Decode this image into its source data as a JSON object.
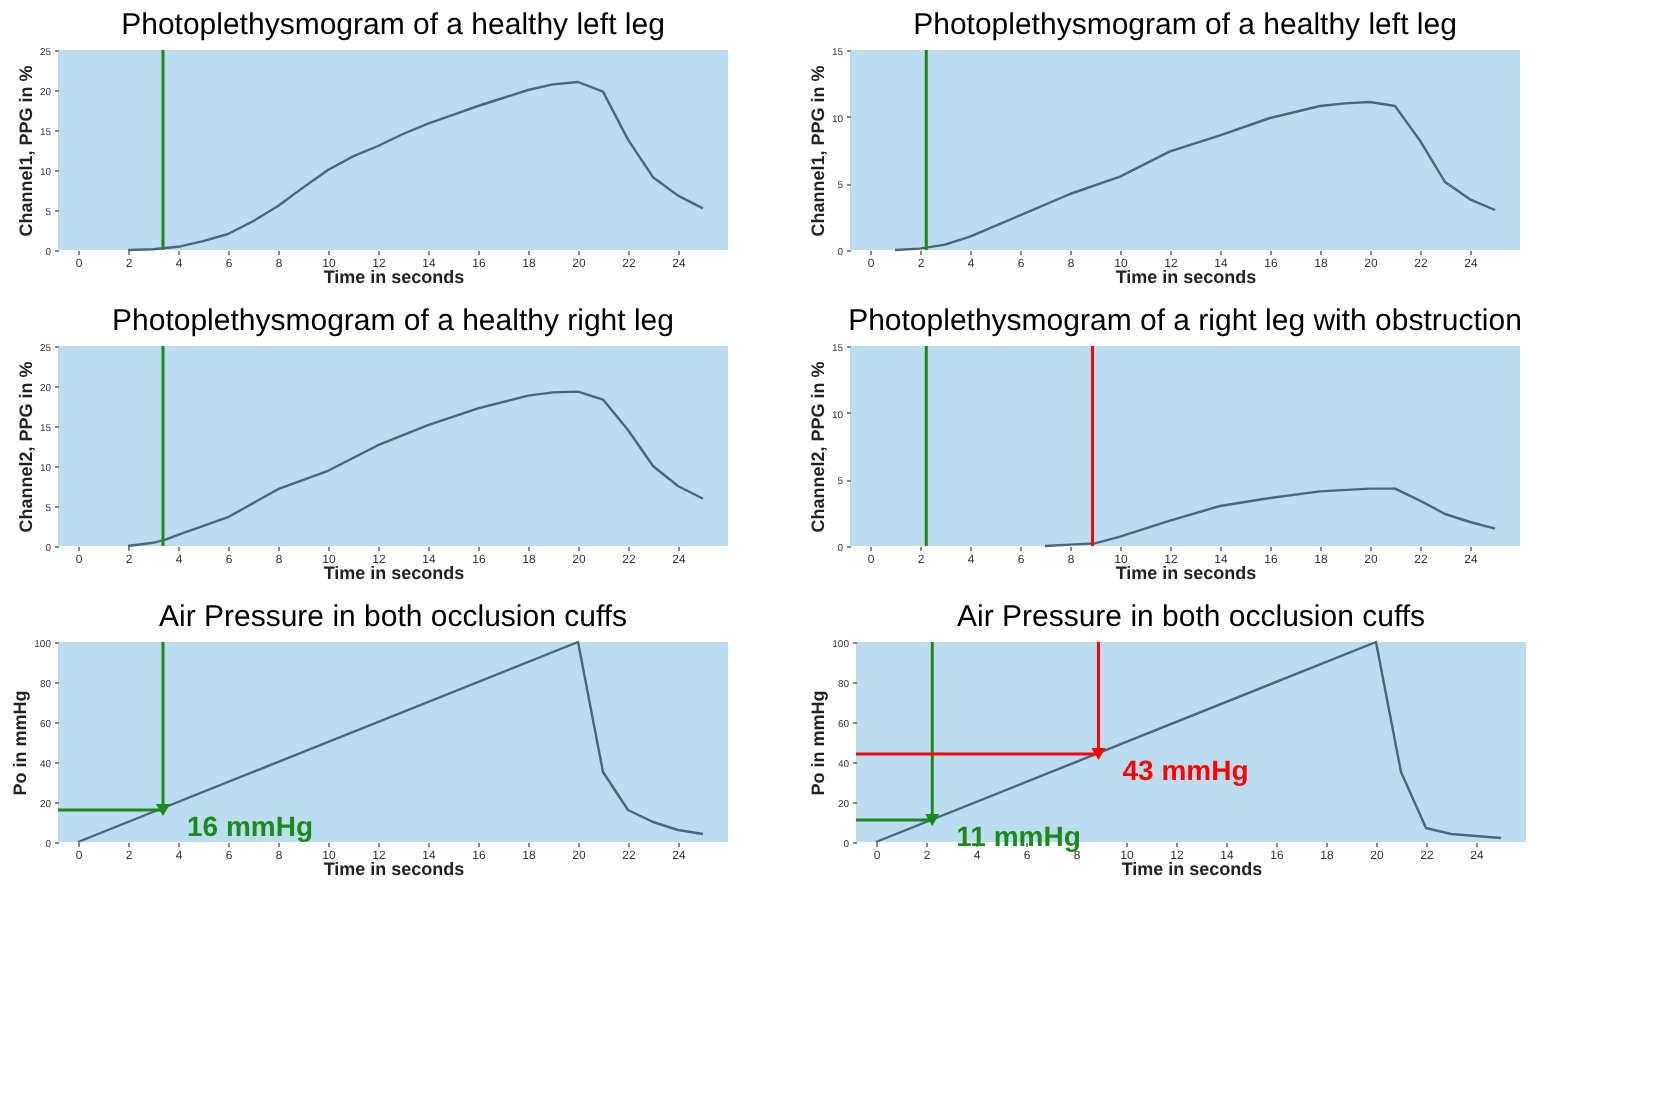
{
  "chart_data": [
    {
      "type": "line",
      "title": "Photoplethysmogram of a healthy left leg",
      "xlabel": "Time in seconds",
      "ylabel": "Channel1, PPG in %",
      "xlim": [
        -0.8,
        26
      ],
      "ylim": [
        0,
        25
      ],
      "xticks": [
        0,
        2,
        4,
        6,
        8,
        10,
        12,
        14,
        16,
        18,
        20,
        22,
        24
      ],
      "yticks": [
        0,
        5,
        10,
        15,
        20,
        25
      ],
      "grid": false,
      "series": [
        {
          "color": "#4a6680",
          "x": [
            2,
            3,
            4,
            5,
            6,
            7,
            8,
            9,
            10,
            11,
            12,
            13,
            14,
            15,
            16,
            17,
            18,
            19,
            20,
            21,
            22,
            23,
            24,
            25
          ],
          "values": [
            0,
            0.1,
            0.4,
            1.1,
            2.0,
            3.6,
            5.5,
            7.8,
            10.0,
            11.7,
            13.0,
            14.5,
            15.8,
            16.9,
            18.0,
            19.0,
            20.0,
            20.7,
            21.0,
            19.8,
            13.8,
            9.1,
            6.8,
            5.2
          ]
        }
      ],
      "ref_lines": [
        {
          "axis": "x",
          "value": 3.4,
          "color": "#1a8a1a"
        }
      ]
    },
    {
      "type": "line",
      "title": "Photoplethysmogram of a healthy left leg",
      "xlabel": "Time in seconds",
      "ylabel": "Channel1, PPG in %",
      "xlim": [
        -0.8,
        26
      ],
      "ylim": [
        0,
        15
      ],
      "xticks": [
        0,
        2,
        4,
        6,
        8,
        10,
        12,
        14,
        16,
        18,
        20,
        22,
        24
      ],
      "yticks": [
        0,
        5,
        10,
        15
      ],
      "grid": false,
      "series": [
        {
          "color": "#4a6680",
          "x": [
            1,
            2,
            3,
            4,
            6,
            8,
            10,
            12,
            14,
            16,
            18,
            19,
            20,
            21,
            22,
            23,
            24,
            25
          ],
          "values": [
            0,
            0.1,
            0.4,
            1.0,
            2.6,
            4.2,
            5.5,
            7.4,
            8.6,
            9.9,
            10.8,
            11.0,
            11.1,
            10.8,
            8.2,
            5.1,
            3.8,
            3.0
          ]
        }
      ],
      "ref_lines": [
        {
          "axis": "x",
          "value": 2.25,
          "color": "#1a8a1a"
        }
      ]
    },
    {
      "type": "line",
      "title": "Photoplethysmogram of a healthy right leg",
      "xlabel": "Time in seconds",
      "ylabel": "Channel2, PPG in %",
      "xlim": [
        -0.8,
        26
      ],
      "ylim": [
        0,
        25
      ],
      "xticks": [
        0,
        2,
        4,
        6,
        8,
        10,
        12,
        14,
        16,
        18,
        20,
        22,
        24
      ],
      "yticks": [
        0,
        5,
        10,
        15,
        20,
        25
      ],
      "grid": false,
      "series": [
        {
          "color": "#4a6680",
          "x": [
            2,
            3,
            3.5,
            4,
            6,
            8,
            10,
            12,
            14,
            16,
            18,
            19,
            20,
            21,
            22,
            23,
            24,
            25
          ],
          "values": [
            0,
            0.4,
            0.8,
            1.4,
            3.6,
            7.1,
            9.4,
            12.6,
            15.1,
            17.2,
            18.8,
            19.2,
            19.3,
            18.3,
            14.5,
            10.0,
            7.5,
            5.9
          ]
        }
      ],
      "ref_lines": [
        {
          "axis": "x",
          "value": 3.4,
          "color": "#1a8a1a"
        }
      ]
    },
    {
      "type": "line",
      "title": "Photoplethysmogram of a right leg with obstruction",
      "xlabel": "Time in seconds",
      "ylabel": "Channel2, PPG in %",
      "xlim": [
        -0.8,
        26
      ],
      "ylim": [
        0,
        15
      ],
      "xticks": [
        0,
        2,
        4,
        6,
        8,
        10,
        12,
        14,
        16,
        18,
        20,
        22,
        24
      ],
      "yticks": [
        0,
        5,
        10,
        15
      ],
      "grid": false,
      "series": [
        {
          "color": "#4a6680",
          "x": [
            7,
            8,
            9,
            10,
            12,
            14,
            16,
            18,
            20,
            21,
            22,
            23,
            24,
            25
          ],
          "values": [
            0,
            0.1,
            0.2,
            0.7,
            1.9,
            3.0,
            3.6,
            4.1,
            4.3,
            4.3,
            3.4,
            2.4,
            1.8,
            1.3
          ]
        }
      ],
      "ref_lines": [
        {
          "axis": "x",
          "value": 2.25,
          "color": "#1a8a1a"
        },
        {
          "axis": "x",
          "value": 8.9,
          "color": "#ff0000"
        }
      ]
    },
    {
      "type": "line",
      "title": "Air Pressure in both occlusion cuffs",
      "xlabel": "Time in seconds",
      "ylabel": "Po in mmHg",
      "xlim": [
        -0.8,
        26
      ],
      "ylim": [
        0,
        100
      ],
      "xticks": [
        0,
        2,
        4,
        6,
        8,
        10,
        12,
        14,
        16,
        18,
        20,
        22,
        24
      ],
      "yticks": [
        0,
        20,
        40,
        60,
        80,
        100
      ],
      "grid": false,
      "series": [
        {
          "color": "#4a6680",
          "x": [
            0,
            20,
            21,
            22,
            23,
            24,
            25
          ],
          "values": [
            0,
            100,
            35,
            16,
            10,
            6,
            4
          ]
        }
      ],
      "ref_lines": [
        {
          "axis": "x",
          "value": 3.4,
          "color": "#1a8a1a"
        },
        {
          "axis": "y",
          "value": 16,
          "color": "#1a8a1a"
        }
      ],
      "annotations": [
        {
          "text": "16 mmHg",
          "x": 3.4,
          "y": 16
        }
      ]
    },
    {
      "type": "line",
      "title": "Air Pressure in both occlusion cuffs",
      "xlabel": "Time in seconds",
      "ylabel": "Po in mmHg",
      "xlim": [
        -0.8,
        26
      ],
      "ylim": [
        0,
        100
      ],
      "xticks": [
        0,
        2,
        4,
        6,
        8,
        10,
        12,
        14,
        16,
        18,
        20,
        22,
        24
      ],
      "yticks": [
        0,
        20,
        40,
        60,
        80,
        100
      ],
      "grid": false,
      "series": [
        {
          "color": "#4a6680",
          "x": [
            0,
            20,
            21,
            22,
            23,
            24,
            25
          ],
          "values": [
            0,
            100,
            35,
            7,
            4,
            3,
            2
          ]
        }
      ],
      "ref_lines": [
        {
          "axis": "x",
          "value": 2.25,
          "color": "#1a8a1a"
        },
        {
          "axis": "y",
          "value": 11,
          "color": "#1a8a1a"
        },
        {
          "axis": "x",
          "value": 8.9,
          "color": "#ff0000"
        },
        {
          "axis": "y",
          "value": 44,
          "color": "#ff0000"
        }
      ],
      "annotations": [
        {
          "text": "11 mmHg",
          "x": 2.25,
          "y": 11
        },
        {
          "text": "43 mmHg",
          "x": 8.9,
          "y": 44
        }
      ]
    }
  ]
}
